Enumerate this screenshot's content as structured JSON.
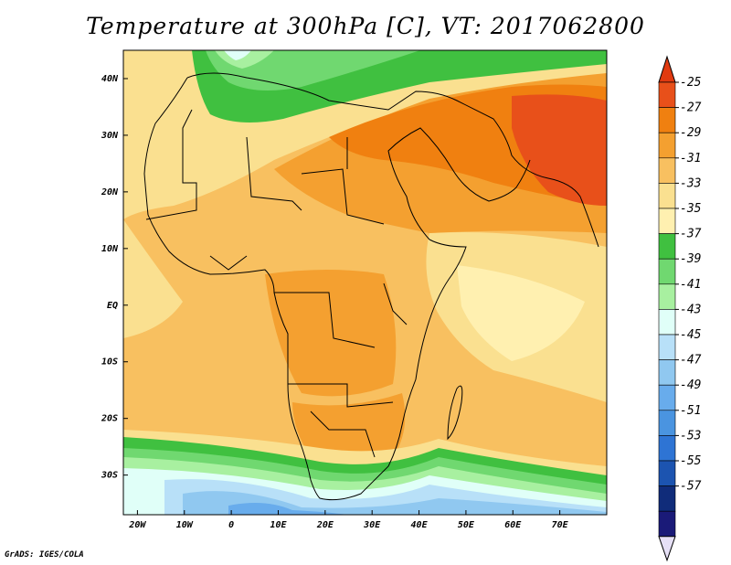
{
  "title": "Temperature at 300hPa [C], VT: 2017062800",
  "footer": "GrADS: IGES/COLA",
  "map": {
    "lon_range": [
      -23,
      80
    ],
    "lat_range": [
      -37,
      45
    ],
    "x_ticks": [
      {
        "lon": -20,
        "label": "20W"
      },
      {
        "lon": -10,
        "label": "10W"
      },
      {
        "lon": 0,
        "label": "0"
      },
      {
        "lon": 10,
        "label": "10E"
      },
      {
        "lon": 20,
        "label": "20E"
      },
      {
        "lon": 30,
        "label": "30E"
      },
      {
        "lon": 40,
        "label": "40E"
      },
      {
        "lon": 50,
        "label": "50E"
      },
      {
        "lon": 60,
        "label": "60E"
      },
      {
        "lon": 70,
        "label": "70E"
      }
    ],
    "y_ticks": [
      {
        "lat": 40,
        "label": "40N"
      },
      {
        "lat": 30,
        "label": "30N"
      },
      {
        "lat": 20,
        "label": "20N"
      },
      {
        "lat": 10,
        "label": "10N"
      },
      {
        "lat": 0,
        "label": "EQ"
      },
      {
        "lat": -10,
        "label": "10S"
      },
      {
        "lat": -20,
        "label": "20S"
      },
      {
        "lat": -30,
        "label": "30S"
      }
    ]
  },
  "colorbar": {
    "labels": [
      "-25",
      "-27",
      "-29",
      "-31",
      "-33",
      "-35",
      "-37",
      "-39",
      "-41",
      "-43",
      "-45",
      "-47",
      "-49",
      "-51",
      "-53",
      "-55",
      "-57"
    ],
    "colors": [
      "#e8501a",
      "#f08010",
      "#f4a030",
      "#f8c060",
      "#fae090",
      "#fff0b0",
      "#40c040",
      "#70d870",
      "#a8f0a0",
      "#e0fff8",
      "#b8e0f8",
      "#90c8f0",
      "#68acec",
      "#4a94e0",
      "#2e74d4",
      "#1c54b0",
      "#102c7a",
      "#1a1a78"
    ],
    "top_color": "#e03a10",
    "bottom_color": "#e6e0f6"
  }
}
